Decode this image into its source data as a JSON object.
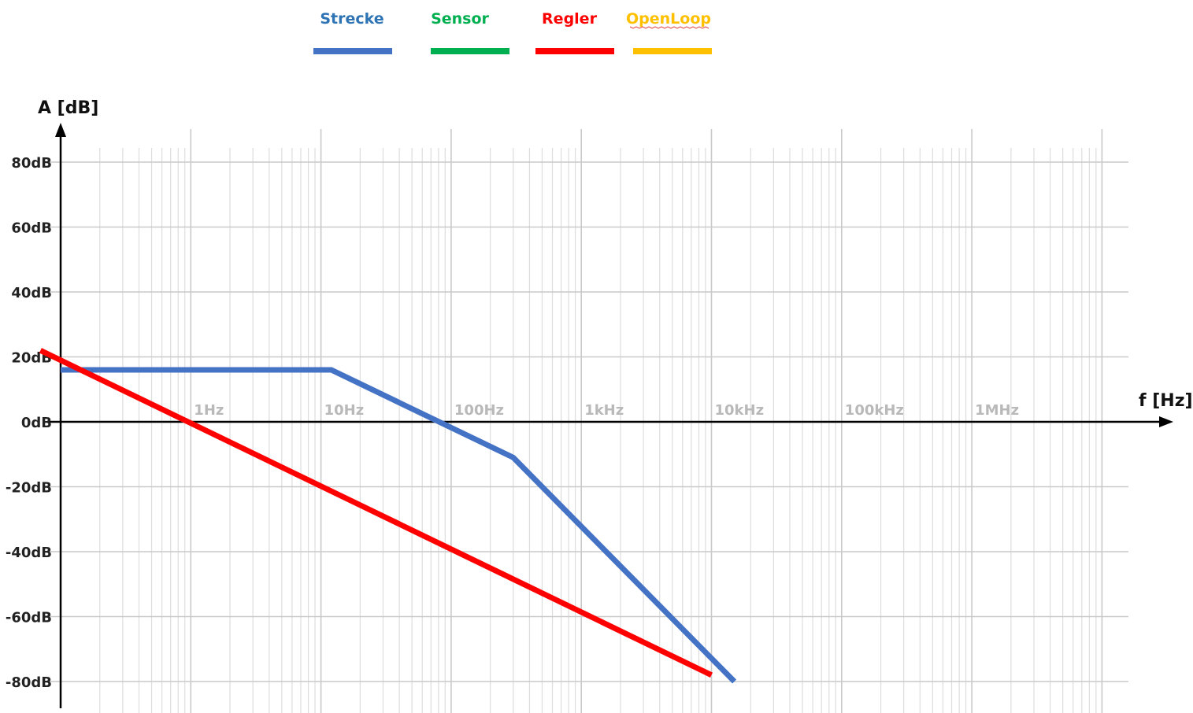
{
  "chart_data": {
    "type": "line",
    "xscale": "log",
    "xlabel": "f [Hz]",
    "ylabel": "A [dB]",
    "xlim": [
      0.1,
      10000000
    ],
    "ylim": [
      -80,
      80
    ],
    "grid": true,
    "legend_position": "top-center",
    "yticks": [
      {
        "value": 80,
        "label": "80dB"
      },
      {
        "value": 60,
        "label": "60dB"
      },
      {
        "value": 40,
        "label": "40dB"
      },
      {
        "value": 20,
        "label": "20dB"
      },
      {
        "value": 0,
        "label": "0dB"
      },
      {
        "value": -20,
        "label": "-20dB"
      },
      {
        "value": -40,
        "label": "-40dB"
      },
      {
        "value": -60,
        "label": "-60dB"
      },
      {
        "value": -80,
        "label": "-80dB"
      }
    ],
    "xticks": [
      {
        "value": 1,
        "label": "1Hz"
      },
      {
        "value": 10,
        "label": "10Hz"
      },
      {
        "value": 100,
        "label": "100Hz"
      },
      {
        "value": 1000,
        "label": "1kHz"
      },
      {
        "value": 10000,
        "label": "10kHz"
      },
      {
        "value": 100000,
        "label": "100kHz"
      },
      {
        "value": 1000000,
        "label": "1MHz"
      }
    ],
    "series": [
      {
        "name": "Strecke",
        "color": "#4472C4",
        "x": [
          0.1,
          12,
          300,
          15000
        ],
        "y": [
          16,
          16,
          -11,
          -80
        ]
      },
      {
        "name": "Sensor",
        "color": "#00B050",
        "x": [],
        "y": []
      },
      {
        "name": "Regler",
        "color": "#FF0000",
        "x": [
          0.07,
          10000
        ],
        "y": [
          22,
          -78
        ]
      },
      {
        "name": "OpenLoop",
        "color": "#FFC000",
        "x": [],
        "y": []
      }
    ]
  },
  "colors": {
    "axis": "#000000",
    "grid_major": "#c9c9c9",
    "grid_minor": "#dddddd",
    "legend_strecke_text": "#2E74B5",
    "legend_sensor_text": "#00B050",
    "legend_regler_text": "#FF0000",
    "legend_openloop_text": "#FFC000"
  }
}
